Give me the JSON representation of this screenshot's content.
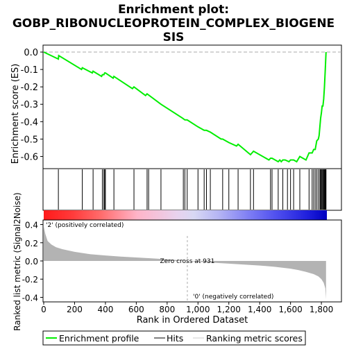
{
  "title_line1": "Enrichment plot:",
  "title_line2": "GOBP_RIBONUCLEOPROTEIN_COMPLEX_BIOGENE",
  "title_line3": "SIS",
  "colors": {
    "es_line": "#00ee00",
    "hit": "#000000",
    "metric_fill": "#b3b3b3",
    "pos_label": "#e60000",
    "neg_label": "#0000e6",
    "grid": "#dddddd"
  },
  "chart_data": [
    {
      "type": "line",
      "name": "enrichment-score-panel",
      "ylabel": "Enrichment score (ES)",
      "ylim": [
        -0.67,
        0.04
      ],
      "yticks": [
        0.0,
        -0.1,
        -0.2,
        -0.3,
        -0.4,
        -0.5,
        -0.6
      ],
      "ytick_labels": [
        "0.0",
        "-0.1",
        "-0.2",
        "-0.3",
        "-0.4",
        "-0.5",
        "-0.6"
      ],
      "series": [
        {
          "name": "Enrichment profile",
          "x": [
            0,
            95,
            97,
            245,
            250,
            315,
            320,
            375,
            380,
            390,
            395,
            400,
            450,
            455,
            575,
            585,
            660,
            670,
            760,
            900,
            915,
            930,
            1000,
            1040,
            1055,
            1080,
            1150,
            1160,
            1200,
            1250,
            1260,
            1340,
            1350,
            1360,
            1460,
            1470,
            1480,
            1520,
            1530,
            1540,
            1550,
            1565,
            1590,
            1600,
            1620,
            1640,
            1660,
            1700,
            1720,
            1740,
            1750,
            1760,
            1770,
            1780,
            1785,
            1790,
            1795,
            1800,
            1805,
            1810,
            1815,
            1820,
            1825,
            1830
          ],
          "y": [
            0.0,
            -0.04,
            -0.02,
            -0.1,
            -0.09,
            -0.12,
            -0.11,
            -0.14,
            -0.13,
            -0.13,
            -0.12,
            -0.12,
            -0.15,
            -0.14,
            -0.21,
            -0.2,
            -0.25,
            -0.24,
            -0.3,
            -0.38,
            -0.39,
            -0.39,
            -0.43,
            -0.45,
            -0.45,
            -0.46,
            -0.5,
            -0.5,
            -0.52,
            -0.54,
            -0.53,
            -0.59,
            -0.58,
            -0.57,
            -0.62,
            -0.61,
            -0.61,
            -0.63,
            -0.62,
            -0.63,
            -0.62,
            -0.62,
            -0.63,
            -0.62,
            -0.62,
            -0.63,
            -0.6,
            -0.62,
            -0.58,
            -0.58,
            -0.56,
            -0.56,
            -0.51,
            -0.5,
            -0.48,
            -0.43,
            -0.38,
            -0.35,
            -0.31,
            -0.31,
            -0.27,
            -0.2,
            -0.1,
            0.0
          ]
        }
      ],
      "hits": [
        95,
        250,
        320,
        380,
        390,
        395,
        400,
        455,
        585,
        670,
        680,
        760,
        905,
        915,
        930,
        1000,
        1040,
        1055,
        1080,
        1160,
        1200,
        1260,
        1340,
        1360,
        1470,
        1480,
        1520,
        1550,
        1580,
        1600,
        1620,
        1660,
        1720,
        1740,
        1750,
        1760,
        1770,
        1780,
        1790,
        1795,
        1800,
        1805,
        1810,
        1815,
        1820,
        1822,
        1825,
        1828,
        1830
      ]
    },
    {
      "type": "area",
      "name": "ranked-metric-panel",
      "xlabel": "Rank in Ordered Dataset",
      "ylabel": "Ranked list metric (Signal2Noise)",
      "xlim": [
        0,
        1930
      ],
      "ylim": [
        -0.45,
        0.45
      ],
      "xticks": [
        0,
        200,
        400,
        600,
        800,
        1000,
        1200,
        1400,
        1600,
        1800
      ],
      "xtick_labels": [
        "0",
        "200",
        "400",
        "600",
        "800",
        "1,000",
        "1,200",
        "1,400",
        "1,600",
        "1,800"
      ],
      "yticks": [
        0.4,
        0.2,
        0.0,
        -0.2,
        -0.4
      ],
      "ytick_labels": [
        "0.4",
        "0.2",
        "0.0",
        "-0.2",
        "-0.4"
      ],
      "x": [
        0,
        10,
        25,
        50,
        80,
        120,
        200,
        300,
        400,
        500,
        600,
        700,
        800,
        931,
        1000,
        1200,
        1400,
        1500,
        1600,
        1650,
        1700,
        1750,
        1780,
        1800,
        1815,
        1825,
        1830
      ],
      "values": [
        0.38,
        0.3,
        0.22,
        0.18,
        0.15,
        0.13,
        0.1,
        0.075,
        0.06,
        0.048,
        0.038,
        0.028,
        0.018,
        0.0,
        -0.01,
        -0.03,
        -0.05,
        -0.065,
        -0.085,
        -0.1,
        -0.12,
        -0.145,
        -0.17,
        -0.2,
        -0.24,
        -0.3,
        -0.42
      ],
      "annotations": {
        "zero_cross": "Zero cross at 931",
        "pos_label": "'2' (positively correlated)",
        "neg_label": "'0' (negatively correlated)"
      }
    }
  ],
  "legend": [
    {
      "label": "Enrichment profile",
      "icon": "green-line"
    },
    {
      "label": "Hits",
      "icon": "black-line"
    },
    {
      "label": "Ranking metric scores",
      "icon": "gray-line"
    }
  ]
}
